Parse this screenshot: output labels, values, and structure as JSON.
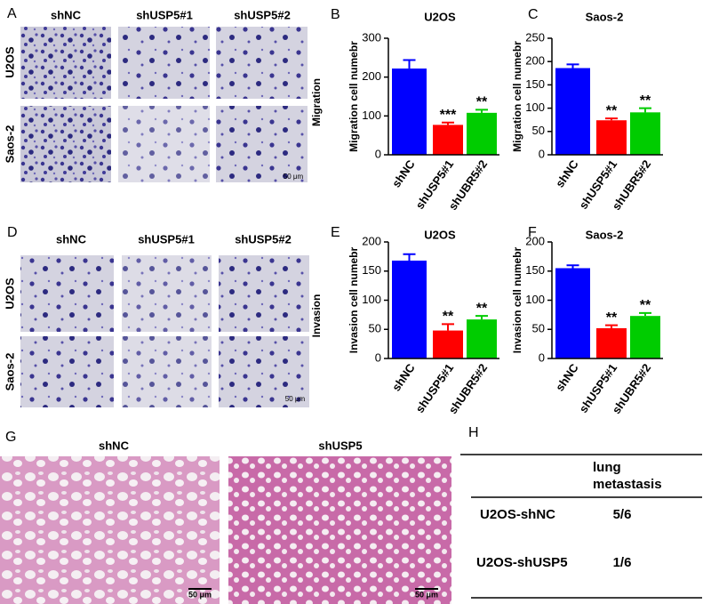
{
  "panel_labels": [
    "A",
    "B",
    "C",
    "D",
    "E",
    "F",
    "G",
    "H"
  ],
  "migration_images": {
    "columns": [
      "shNC",
      "shUSP5#1",
      "shUSP5#2"
    ],
    "rows": [
      "U2OS",
      "Saos-2"
    ],
    "side_label": "Migration",
    "scale_bar": "50 μm"
  },
  "invasion_images": {
    "columns": [
      "shNC",
      "shUSP5#1",
      "shUSP5#2"
    ],
    "rows": [
      "U2OS",
      "Saos-2"
    ],
    "side_label": "Invasion",
    "scale_bar": "50 μm"
  },
  "histology": {
    "columns": [
      "shNC",
      "shUSP5"
    ],
    "scale_bars": [
      "50 μm",
      "50 μm"
    ]
  },
  "table": {
    "header": [
      "lung",
      "metastasis"
    ],
    "rows": [
      [
        "U2OS-shNC",
        "5/6"
      ],
      [
        "U2OS-shUSP5",
        "1/6"
      ]
    ]
  },
  "chart_data": [
    {
      "type": "bar",
      "title": "U2OS",
      "y_label": "Migration cell numebr",
      "categories": [
        "shNC",
        "shUSP5#1",
        "shUBR5#2"
      ],
      "values": [
        222,
        77,
        108
      ],
      "errors": [
        22,
        6,
        8
      ],
      "significance": [
        null,
        "***",
        "**"
      ],
      "colors": [
        "#0000ff",
        "#ff0000",
        "#00cc00"
      ],
      "ylim": [
        0,
        300
      ],
      "yticks": [
        0,
        100,
        200,
        300
      ]
    },
    {
      "type": "bar",
      "title": "Saos-2",
      "y_label": "Migration cell numebr",
      "categories": [
        "shNC",
        "shUSP5#1",
        "shUBR5#2"
      ],
      "values": [
        186,
        74,
        91
      ],
      "errors": [
        8,
        4,
        9
      ],
      "significance": [
        null,
        "**",
        "**"
      ],
      "colors": [
        "#0000ff",
        "#ff0000",
        "#00cc00"
      ],
      "ylim": [
        0,
        250
      ],
      "yticks": [
        0,
        50,
        100,
        150,
        200,
        250
      ]
    },
    {
      "type": "bar",
      "title": "U2OS",
      "y_label": "Invasion cell numebr",
      "categories": [
        "shNC",
        "shUSP5#1",
        "shUBR5#2"
      ],
      "values": [
        168,
        48,
        67
      ],
      "errors": [
        11,
        11,
        6
      ],
      "significance": [
        null,
        "**",
        "**"
      ],
      "colors": [
        "#0000ff",
        "#ff0000",
        "#00cc00"
      ],
      "ylim": [
        0,
        200
      ],
      "yticks": [
        0,
        50,
        100,
        150,
        200
      ]
    },
    {
      "type": "bar",
      "title": "Saos-2",
      "y_label": "Invasion cell numebr",
      "categories": [
        "shNC",
        "shUSP5#1",
        "shUBR5#2"
      ],
      "values": [
        155,
        52,
        73
      ],
      "errors": [
        5,
        5,
        5
      ],
      "significance": [
        null,
        "**",
        "**"
      ],
      "colors": [
        "#0000ff",
        "#ff0000",
        "#00cc00"
      ],
      "ylim": [
        0,
        200
      ],
      "yticks": [
        0,
        50,
        100,
        150,
        200
      ]
    }
  ]
}
